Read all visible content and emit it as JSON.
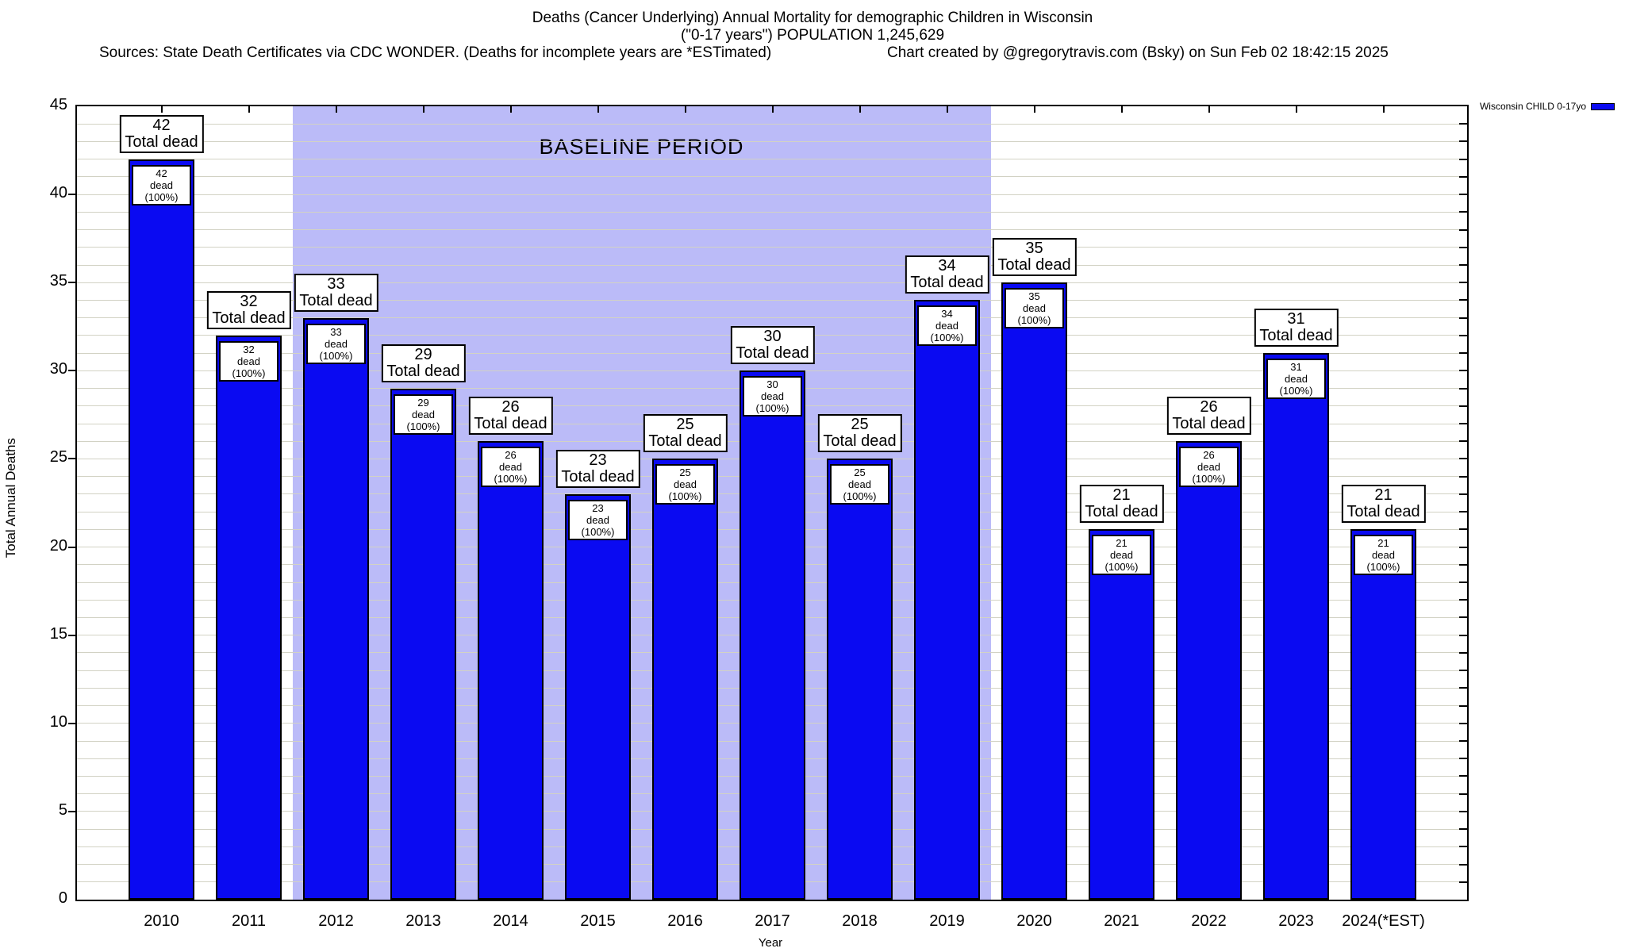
{
  "header": {
    "title_line1": "Deaths (Cancer Underlying) Annual Mortality for demographic Children in Wisconsin",
    "title_line2": "(\"0-17 years\") POPULATION 1,245,629",
    "sources": "Sources: State Death Certificates via CDC WONDER. (Deaths for incomplete years are *ESTimated)",
    "credit": "Chart created by @gregorytravis.com (Bsky) on Sun Feb 02 18:42:15 2025"
  },
  "legend": {
    "label": "Wisconsin CHILD 0-17yo",
    "swatch_color": "#0a0af2",
    "position": "top-right"
  },
  "chart_data": {
    "type": "bar",
    "title": "Deaths (Cancer Underlying) Annual Mortality for demographic Children in Wisconsin (\"0-17 years\") POPULATION 1,245,629",
    "categories": [
      "2010",
      "2011",
      "2012",
      "2013",
      "2014",
      "2015",
      "2016",
      "2017",
      "2018",
      "2019",
      "2020",
      "2021",
      "2022",
      "2023",
      "2024(*EST)"
    ],
    "values": [
      42,
      32,
      33,
      29,
      26,
      23,
      25,
      30,
      25,
      34,
      35,
      21,
      26,
      31,
      21
    ],
    "series_name": "Wisconsin CHILD 0-17yo",
    "xlabel": "Year",
    "ylabel": "Total Annual Deaths",
    "ylim": [
      0,
      45
    ],
    "ytick_step": 5,
    "minor_grid_step": 1,
    "grid": "horizontal minor gridlines every 1 unit",
    "bar_color": "#0a0af2",
    "bar_border_color": "#000000",
    "bar_top_label_suffix": "Total dead",
    "bar_inner_label_suffix": "dead (100%)",
    "baseline_band": {
      "text": "BASELINE PERIOD",
      "from_category": "2012",
      "to_category": "2019",
      "color": "#bbbbf8"
    }
  }
}
